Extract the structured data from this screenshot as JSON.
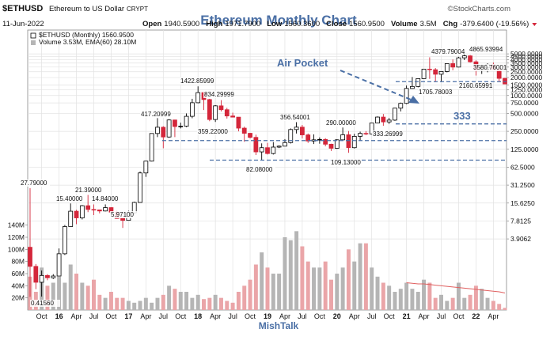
{
  "chart_data": {
    "type": "candlestick",
    "title": "Ethereum Monthly Chart",
    "symbol": "$ETHUSD",
    "name": "Ethereum to US Dollar",
    "exchange": "CRYPT",
    "source": "©StockCharts.com",
    "date": "11-Jun-2022",
    "quote": [
      {
        "label": "Open",
        "value": "1940.5900"
      },
      {
        "label": "High",
        "value": "1971.7900"
      },
      {
        "label": "Low",
        "value": "1560.3600"
      },
      {
        "label": "Close",
        "value": "1560.9500"
      },
      {
        "label": "Volume",
        "value": "3.5M"
      },
      {
        "label": "Chg",
        "value": "-379.6400 (-19.56%)"
      }
    ],
    "legend_price": "$ETHUSD (Monthly) 1560.9500",
    "legend_volume": "Volume 3.53M, EMA(60) 28.10M",
    "footer": "MishTalk",
    "annotations": [
      "Air Pocket",
      "333"
    ],
    "price_labels": [
      "27.79000",
      "0.41560",
      "15.40000",
      "21.39000",
      "14.84000",
      "5.97100",
      "417.20999",
      "1422.85999",
      "834.29999",
      "359.22000",
      "82.08000",
      "356.54001",
      "290.00000",
      "109.13000",
      "333.26999",
      "4379.79004",
      "1705.78003",
      "4865.93994",
      "3580.76001",
      "2160.65991"
    ],
    "categories": [
      null,
      null,
      "Oct",
      null,
      null,
      "16",
      null,
      null,
      "Apr",
      null,
      null,
      "Jul",
      null,
      null,
      "Oct",
      null,
      null,
      "17",
      null,
      null,
      "Apr",
      null,
      null,
      "Jul",
      null,
      null,
      "Oct",
      null,
      null,
      "18",
      null,
      null,
      "Apr",
      null,
      null,
      "Jul",
      null,
      null,
      "Oct",
      null,
      null,
      "19",
      null,
      null,
      "Apr",
      null,
      null,
      "Jul",
      null,
      null,
      "Oct",
      null,
      null,
      "20",
      null,
      null,
      "Apr",
      null,
      null,
      "Jul",
      null,
      null,
      "Oct",
      null,
      null,
      "21",
      null,
      null,
      "Apr",
      null,
      null,
      "Jul",
      null,
      null,
      "Oct",
      null,
      null,
      "22",
      null,
      null,
      "Apr",
      null,
      null
    ],
    "open": [
      2.83,
      1.35,
      0.73,
      0.95,
      0.87,
      0.93,
      2.2,
      6.3,
      11.4,
      8.8,
      14.1,
      12.2,
      12.0,
      11.5,
      13.1,
      11.0,
      8.6,
      8.0,
      10.7,
      16.0,
      50,
      79,
      230,
      293,
      201,
      388,
      301,
      305,
      447,
      756,
      1118,
      855,
      395,
      670,
      577,
      453,
      433,
      283,
      232,
      198,
      113,
      133,
      106,
      136,
      141,
      162,
      268,
      294,
      218,
      172,
      180,
      183,
      152,
      130,
      180,
      219,
      133,
      206,
      231,
      226,
      345,
      434,
      360,
      386,
      613,
      737,
      1314,
      1417,
      1919,
      2773,
      2710,
      2275,
      2530,
      3430,
      3000,
      4290,
      4630,
      3680,
      2690,
      2920,
      3280,
      2730,
      1940.59
    ],
    "high": [
      27.79,
      1.48,
      1.15,
      1.0,
      1.0,
      2.7,
      6.7,
      15.4,
      12.0,
      14.5,
      21.39,
      14.8,
      12.1,
      14.84,
      13.3,
      11.5,
      8.9,
      11.6,
      16.5,
      53,
      80,
      232,
      417.21,
      305,
      400,
      392,
      350,
      500,
      880,
      1422.86,
      1160,
      880,
      690,
      834.3,
      620,
      515,
      435,
      300,
      235,
      220,
      157,
      160,
      165,
      145,
      185,
      280,
      356.54,
      320,
      230,
      223,
      198,
      192,
      155,
      185,
      290,
      253,
      228,
      247,
      252,
      345,
      445,
      489,
      420,
      620,
      760,
      1470,
      2040,
      1945,
      2800,
      4379.79,
      2890,
      2550,
      3475,
      4030,
      4460,
      4865.94,
      4780,
      3900,
      3280,
      3480,
      3580.76,
      2960,
      1971.79
    ],
    "low": [
      0.4156,
      0.56,
      0.42,
      0.79,
      0.83,
      0.93,
      2.1,
      6.3,
      6.9,
      8.3,
      11.0,
      9.8,
      10.5,
      11.3,
      10.5,
      8.5,
      5.971,
      8.0,
      10.3,
      16.0,
      43,
      78,
      200,
      130,
      195,
      200,
      280,
      294,
      415,
      740,
      570,
      370,
      359.22,
      540,
      410,
      430,
      250,
      167,
      190,
      100,
      82.08,
      102,
      102,
      131,
      140,
      156,
      230,
      190,
      160,
      153,
      155,
      140,
      117,
      127,
      175,
      109.13,
      129,
      176,
      216,
      224,
      340,
      310,
      333.27,
      375,
      540,
      715,
      1300,
      1370,
      1900,
      1900,
      1705.78,
      1720,
      2450,
      2650,
      2970,
      3930,
      3575,
      2160.66,
      2300,
      2460,
      2700,
      1700,
      1560.36
    ],
    "close": [
      1.35,
      0.73,
      0.95,
      0.87,
      0.93,
      2.2,
      6.3,
      11.4,
      8.8,
      14.1,
      12.2,
      12.0,
      11.5,
      13.1,
      11.0,
      8.6,
      8.0,
      10.7,
      16.0,
      50,
      79,
      230,
      293,
      201,
      388,
      301,
      305,
      447,
      756,
      1118,
      855,
      395,
      670,
      577,
      453,
      433,
      283,
      232,
      198,
      113,
      133,
      106,
      136,
      141,
      162,
      268,
      294,
      218,
      172,
      180,
      183,
      152,
      130,
      180,
      219,
      133,
      206,
      231,
      226,
      345,
      434,
      360,
      386,
      613,
      737,
      1314,
      1417,
      1919,
      2773,
      2710,
      2275,
      2530,
      3430,
      3000,
      4290,
      4630,
      3680,
      2690,
      2920,
      3280,
      2730,
      1940,
      1560.95
    ],
    "volume": [
      55000000,
      30000000,
      70000000,
      40000000,
      45000000,
      55000000,
      45000000,
      75000000,
      60000000,
      45000000,
      40000000,
      50000000,
      25000000,
      20000000,
      30000000,
      20000000,
      20000000,
      15000000,
      12000000,
      15000000,
      20000000,
      12000000,
      20000000,
      25000000,
      40000000,
      35000000,
      30000000,
      30000000,
      20000000,
      25000000,
      18000000,
      20000000,
      25000000,
      20000000,
      15000000,
      12000000,
      30000000,
      40000000,
      50000000,
      75000000,
      95000000,
      70000000,
      60000000,
      60000000,
      120000000,
      115000000,
      130000000,
      105000000,
      80000000,
      70000000,
      70000000,
      80000000,
      50000000,
      60000000,
      70000000,
      100000000,
      80000000,
      110000000,
      110000000,
      70000000,
      55000000,
      45000000,
      40000000,
      30000000,
      35000000,
      45000000,
      35000000,
      30000000,
      50000000,
      45000000,
      20000000,
      25000000,
      15000000,
      20000000,
      45000000,
      20000000,
      25000000,
      40000000,
      35000000,
      20000000,
      15000000,
      10000000,
      3530000
    ],
    "volume_ema": [
      null,
      null,
      null,
      null,
      null,
      null,
      null,
      null,
      null,
      null,
      null,
      null,
      null,
      null,
      null,
      null,
      null,
      null,
      null,
      null,
      null,
      null,
      null,
      null,
      null,
      null,
      null,
      null,
      null,
      null,
      null,
      null,
      null,
      null,
      null,
      null,
      null,
      null,
      null,
      null,
      null,
      null,
      null,
      null,
      null,
      null,
      null,
      null,
      null,
      null,
      null,
      null,
      null,
      null,
      null,
      null,
      null,
      null,
      null,
      null,
      null,
      null,
      null,
      null,
      null,
      45000000,
      44000000,
      43000000,
      43000000,
      42000000,
      41000000,
      40000000,
      39000000,
      38000000,
      37000000,
      36000000,
      35000000,
      34000000,
      33000000,
      32000000,
      31000000,
      30000000,
      28100000
    ],
    "reference_lines": [
      1705.78,
      333.27,
      175,
      82.08
    ],
    "log_scale": true,
    "grid": true,
    "ylim": [
      0.25,
      5500
    ],
    "yticks": [
      {
        "value": 5000,
        "label": "5000.0000"
      },
      {
        "value": 4500,
        "label": "4500.0000"
      },
      {
        "value": 4000,
        "label": "4000.0000"
      },
      {
        "value": 3500,
        "label": "3500.0000"
      },
      {
        "value": 3000,
        "label": "3000.0000"
      },
      {
        "value": 2500,
        "label": "2500.0000"
      },
      {
        "value": 2000,
        "label": "2000.0000"
      },
      {
        "value": 1500,
        "label": "1500.0000"
      },
      {
        "value": 1250,
        "label": "1250.0000"
      },
      {
        "value": 1000,
        "label": "1000.0000"
      },
      {
        "value": 750,
        "label": "750.0000"
      },
      {
        "value": 500,
        "label": "500.0000"
      },
      {
        "value": 250,
        "label": "250.0000"
      },
      {
        "value": 125,
        "label": "125.0000"
      },
      {
        "value": 62.5,
        "label": "62.5000"
      },
      {
        "value": 31.25,
        "label": "31.2500"
      },
      {
        "value": 15.625,
        "label": "15.6250"
      },
      7.8125,
      3.9062
    ],
    "volume_ylim": [
      0,
      150000000
    ],
    "volume_ticks": [
      {
        "value": 20000000,
        "label": "20M"
      },
      {
        "value": 40000000,
        "label": "40M"
      },
      {
        "value": 60000000,
        "label": "60M"
      },
      {
        "value": 80000000,
        "label": "80M"
      },
      {
        "value": 100000000,
        "label": "100M"
      },
      {
        "value": 120000000,
        "label": "120M"
      },
      {
        "value": 140000000,
        "label": "140M"
      }
    ],
    "up_color": "#000000",
    "down_color": "#d4263a",
    "volume_up_color": "#b5b5b5",
    "volume_down_color": "#eaa5a8",
    "ema_color": "#e06060",
    "annotation_color": "#4a6fa5"
  }
}
